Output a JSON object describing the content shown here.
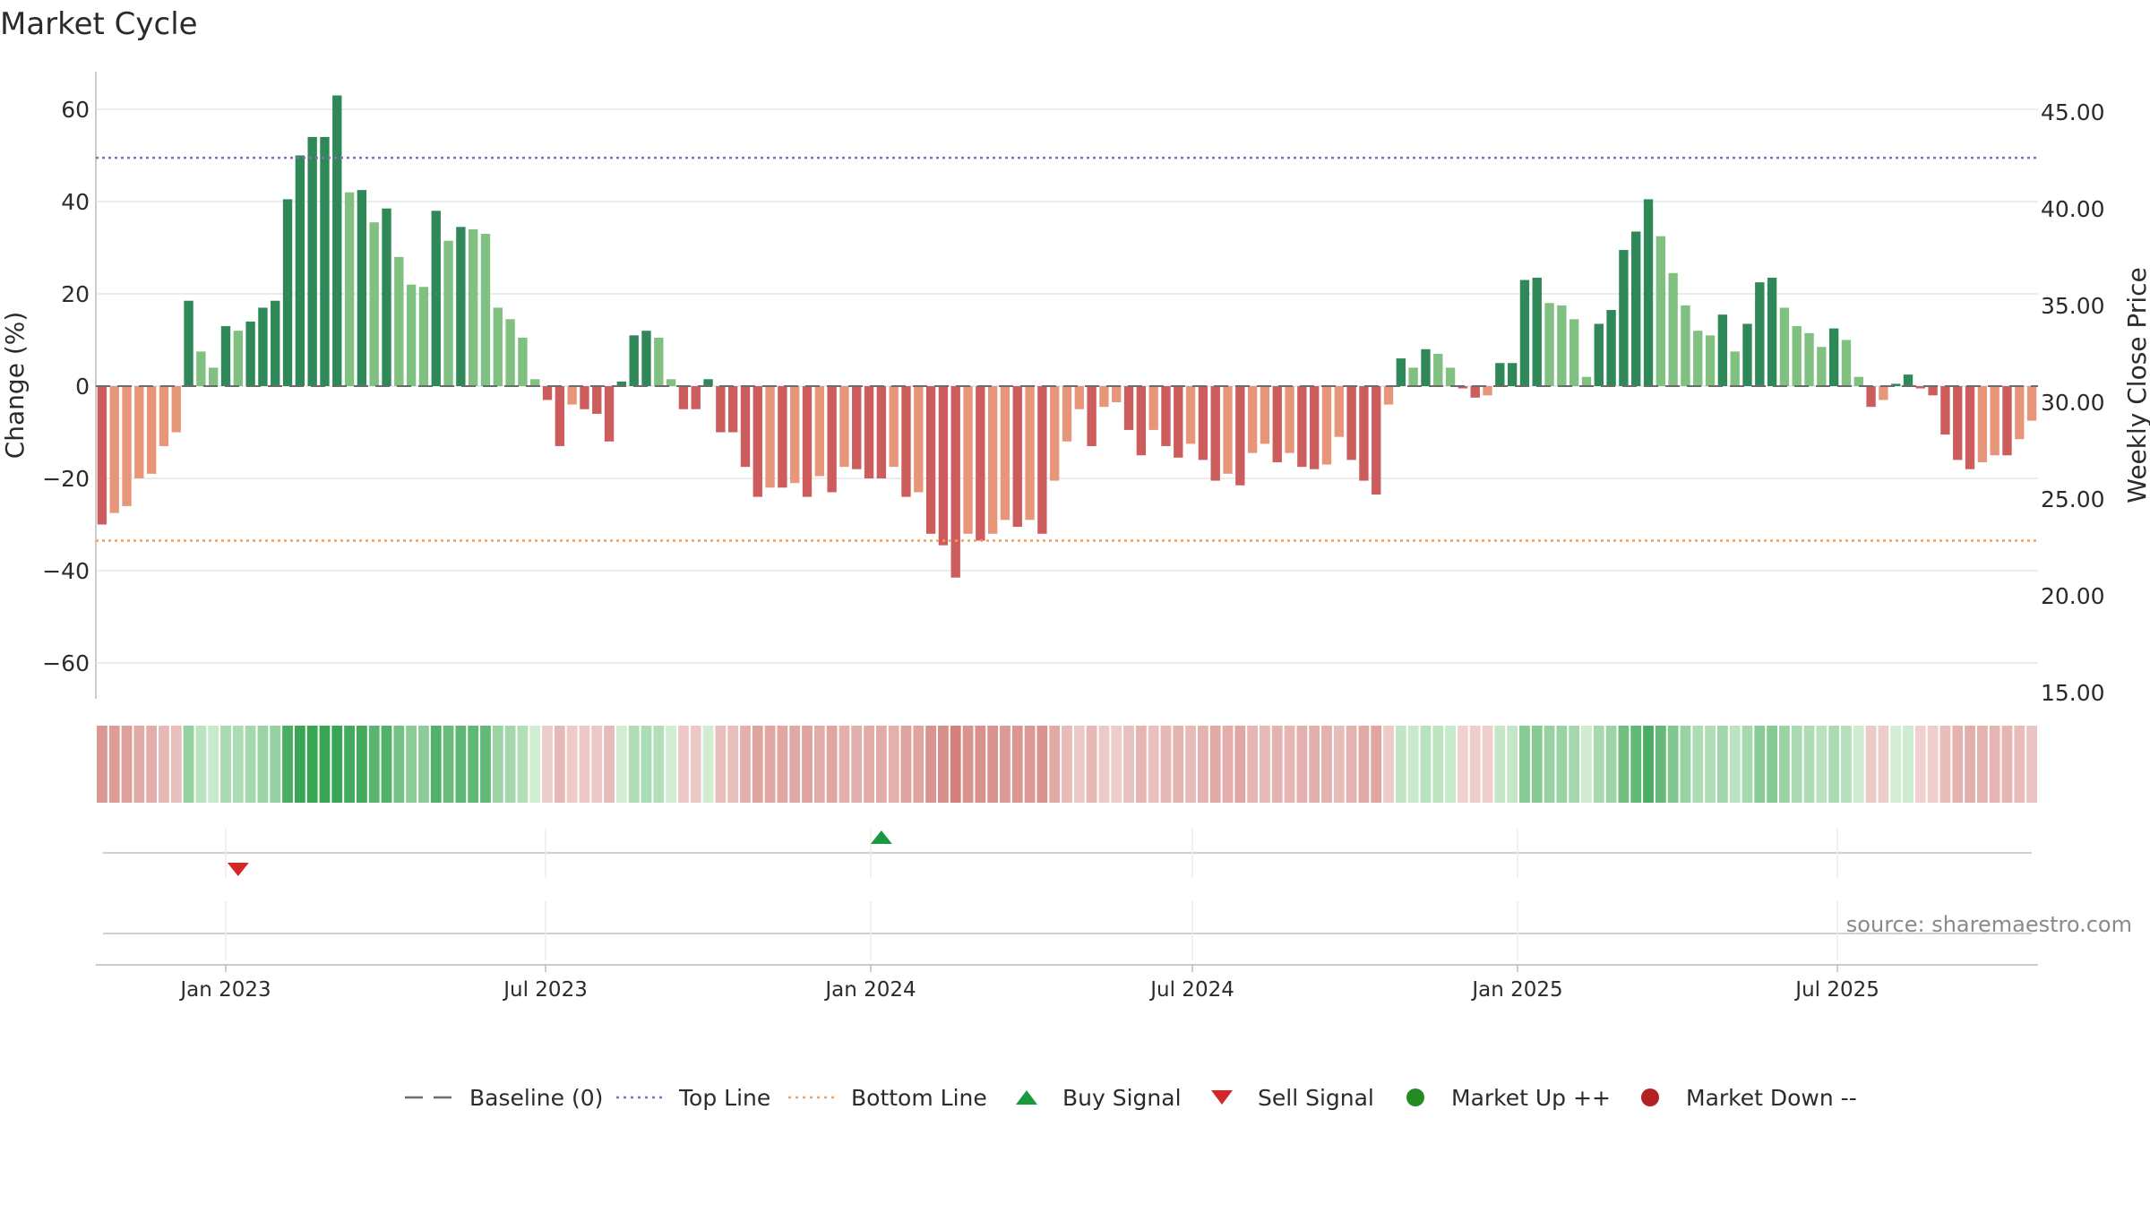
{
  "title": "Market Cycle",
  "source": "source: sharemaestro.com",
  "chart_data": {
    "type": "bar",
    "title": "Market Cycle",
    "ylabel": "Change (%)",
    "y2label": "Weekly Close Price",
    "ylim": [
      -68,
      68
    ],
    "y2lim": [
      15,
      47
    ],
    "yticks": [
      60,
      40,
      20,
      0,
      -20,
      -40,
      -60
    ],
    "ytick_labels": [
      "60",
      "40",
      "20",
      "0",
      "−20",
      "−40",
      "−60"
    ],
    "y2ticks": [
      45,
      40,
      35,
      30,
      25,
      20,
      15
    ],
    "y2tick_labels": [
      "45.00",
      "40.00",
      "35.00",
      "30.00",
      "25.00",
      "20.00",
      "15.00"
    ],
    "x_start": "2022-10-23",
    "x_step_days": 7,
    "xticks": [
      "2023-01-01",
      "2023-07-01",
      "2024-01-01",
      "2024-07-01",
      "2025-01-01",
      "2025-07-01"
    ],
    "xtick_labels": [
      "Jan 2023",
      "Jul 2023",
      "Jan 2024",
      "Jul 2024",
      "Jan 2025",
      "Jul 2025"
    ],
    "values": [
      -30,
      -27.5,
      -26,
      -20,
      -19,
      -13,
      -10,
      18.5,
      7.5,
      4,
      13,
      12,
      14,
      17,
      18.5,
      40.5,
      50,
      54,
      54,
      63,
      42,
      42.5,
      35.5,
      38.5,
      28,
      22,
      21.5,
      38,
      31.5,
      34.5,
      34,
      33,
      17,
      14.5,
      10.5,
      1.5,
      -3,
      -13,
      -4,
      -5,
      -6,
      -12,
      1,
      11,
      12,
      10.5,
      1.5,
      -5,
      -5,
      1.5,
      -10,
      -10,
      -17.5,
      -24,
      -22,
      -22,
      -21,
      -24,
      -19.5,
      -23,
      -17.5,
      -18,
      -20,
      -20,
      -17.5,
      -24,
      -23,
      -32,
      -34.5,
      -41.5,
      -32,
      -33.5,
      -32,
      -29,
      -30.5,
      -29,
      -32,
      -20.5,
      -12,
      -5,
      -13,
      -4.5,
      -3.5,
      -9.5,
      -15,
      -9.5,
      -13,
      -15.5,
      -12.5,
      -16,
      -20.5,
      -19,
      -21.5,
      -14.5,
      -12.5,
      -16.5,
      -14.5,
      -17.5,
      -18,
      -17,
      -11,
      -16,
      -20.5,
      -23.5,
      -4,
      6,
      4,
      8,
      7,
      4,
      -0.5,
      -2.5,
      -2,
      5,
      5,
      23,
      23.5,
      18,
      17.5,
      14.5,
      2,
      13.5,
      16.5,
      29.5,
      33.5,
      40.5,
      32.5,
      24.5,
      17.5,
      12,
      11,
      15.5,
      7.5,
      13.5,
      22.5,
      23.5,
      17,
      13,
      11.5,
      8.5,
      12.5,
      10,
      2,
      -4.5,
      -3,
      0.5,
      2.5,
      -0.5,
      -2,
      -10.5,
      -16,
      -18,
      -16.5,
      -15,
      -15,
      -11.5,
      -7.5
    ],
    "reference_lines": [
      {
        "name": "Baseline (0)",
        "y": 0,
        "color": "#6b6b6b",
        "style": "long-dash"
      },
      {
        "name": "Top Line",
        "y": 49.5,
        "color": "#9467bd",
        "style": "dotted"
      },
      {
        "name": "Bottom Line",
        "y": -33.5,
        "color": "#f0a060",
        "style": "dotted"
      }
    ],
    "signals": [
      {
        "type": "Sell Signal",
        "date": "2023-01-08"
      },
      {
        "type": "Buy Signal",
        "date": "2024-01-07"
      }
    ],
    "legend": [
      {
        "label": "Baseline (0)",
        "marker": "long-dash",
        "color": "#6b6b6b"
      },
      {
        "label": "Top Line",
        "marker": "dotted",
        "color": "#9467bd"
      },
      {
        "label": "Bottom Line",
        "marker": "dotted",
        "color": "#f0a060"
      },
      {
        "label": "Buy Signal",
        "marker": "triangle-up",
        "color": "#1a9a3f"
      },
      {
        "label": "Sell Signal",
        "marker": "triangle-down",
        "color": "#d62728"
      },
      {
        "label": "Market Up ++",
        "marker": "circle",
        "color": "#228b22"
      },
      {
        "label": "Market Down --",
        "marker": "circle",
        "color": "#b22222"
      }
    ],
    "legend_position": "bottom-center",
    "grid": true,
    "colors": {
      "strong_up": "#2e8857",
      "mild_up": "#80c080",
      "strong_down": "#cd5c5c",
      "mild_down": "#e8967a"
    }
  }
}
